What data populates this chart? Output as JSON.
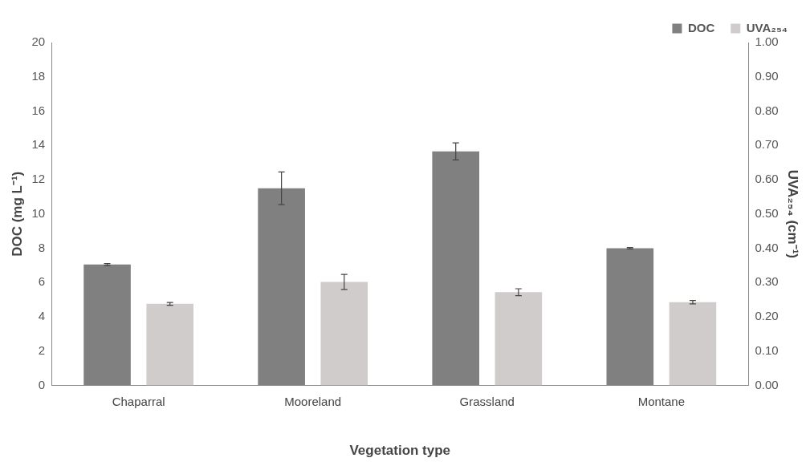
{
  "chart_data": {
    "type": "bar",
    "xlabel": "Vegetation type",
    "ylabel": "DOC (mg L⁻¹)",
    "y2label": "UVA₂₅₄ (cm⁻¹)",
    "categories": [
      "Chaparral",
      "Mooreland",
      "Grassland",
      "Montane"
    ],
    "series": [
      {
        "name": "DOC",
        "color": "#808080",
        "values": [
          7.05,
          11.5,
          13.65,
          8.0
        ],
        "errors": [
          0.06,
          0.95,
          0.5,
          0.04
        ]
      },
      {
        "name": "UVA₂₅₄",
        "color": "#d0cccc",
        "axis": "y2",
        "values": [
          0.238,
          0.302,
          0.272,
          0.243
        ],
        "errors": [
          0.004,
          0.022,
          0.01,
          0.005
        ]
      }
    ],
    "ylim": [
      0,
      20
    ],
    "yticks": [
      0,
      2,
      4,
      6,
      8,
      10,
      12,
      14,
      16,
      18,
      20
    ],
    "y2lim": [
      0,
      1
    ],
    "y2ticks": [
      {
        "value": 0,
        "label": "0.00"
      },
      {
        "value": 0.1,
        "label": "0.10"
      },
      {
        "value": 0.2,
        "label": "0.20"
      },
      {
        "value": 0.3,
        "label": "0.30"
      },
      {
        "value": 0.4,
        "label": "0.40"
      },
      {
        "value": 0.5,
        "label": "0.50"
      },
      {
        "value": 0.6,
        "label": "0.60"
      },
      {
        "value": 0.7,
        "label": "0.70"
      },
      {
        "value": 0.8,
        "label": "0.80"
      },
      {
        "value": 0.9,
        "label": "0.90"
      },
      {
        "value": 1,
        "label": "1.00"
      }
    ],
    "grid": false,
    "legend": "top right"
  }
}
